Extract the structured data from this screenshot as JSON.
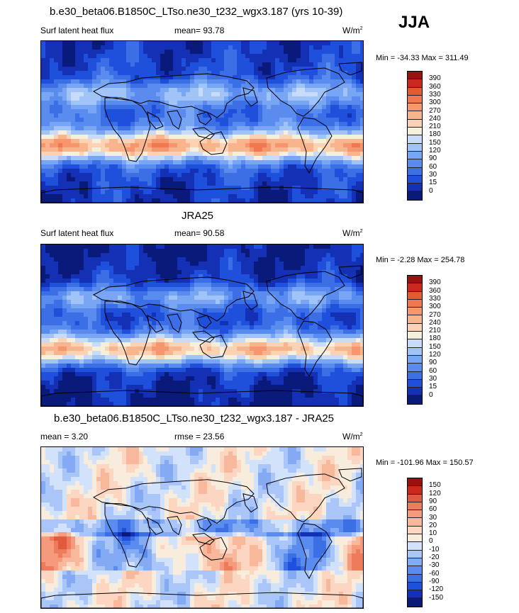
{
  "season": "JJA",
  "colors": {
    "abs_scale": [
      "#0a1a7a",
      "#1430b4",
      "#1e50dc",
      "#3c6ee6",
      "#5a8cf0",
      "#78a6f4",
      "#a0c3f8",
      "#c8dcfa",
      "#f5f0dc",
      "#fcd2b4",
      "#f8b48c",
      "#f5966e",
      "#f07850",
      "#e65a32",
      "#c8281e",
      "#9b0f0f"
    ],
    "diff_scale": [
      "#0a1a7a",
      "#1430b4",
      "#1e50dc",
      "#3c6ee6",
      "#5a8cf0",
      "#84aaf4",
      "#aac6f8",
      "#d2e2fa",
      "#f8ecdc",
      "#fcd6c0",
      "#f8b89c",
      "#f59a7c",
      "#ee7c5c",
      "#e05a3c",
      "#c8281e",
      "#9b0f0f"
    ],
    "land_outline": "#000000"
  },
  "panels": [
    {
      "title": "b.e30_beta06.B1850C_LTso.ne30_t232_wgx3.187 (yrs 10-39)",
      "left_label": "Surf latent heat flux",
      "center_label": "mean=  93.78",
      "units": "W/m",
      "units_sup": "2",
      "minmax": "Min = -34.33 Max = 311.49"
    },
    {
      "title": "JRA25",
      "left_label": "Surf latent heat flux",
      "center_label": "mean=  90.58",
      "units": "W/m",
      "units_sup": "2",
      "minmax": "Min =  -2.28 Max = 254.78"
    },
    {
      "title": "b.e30_beta06.B1850C_LTso.ne30_t232_wgx3.187 - JRA25",
      "left_label": "mean =   3.20",
      "center_label": "rmse =  23.56",
      "units": "W/m",
      "units_sup": "2",
      "minmax": "Min = -101.96 Max = 150.57"
    }
  ],
  "chart_data": [
    {
      "type": "heatmap",
      "title": "b.e30_beta06.B1850C_LTso.ne30_t232_wgx3.187 (yrs 10-39)",
      "variable": "Surf latent heat flux",
      "units": "W/m2",
      "mean": 93.78,
      "min": -34.33,
      "max": 311.49,
      "colorbar_levels": [
        0,
        15,
        30,
        60,
        90,
        120,
        150,
        180,
        210,
        240,
        270,
        300,
        330,
        360,
        390
      ]
    },
    {
      "type": "heatmap",
      "title": "JRA25",
      "variable": "Surf latent heat flux",
      "units": "W/m2",
      "mean": 90.58,
      "min": -2.28,
      "max": 254.78,
      "colorbar_levels": [
        0,
        15,
        30,
        60,
        90,
        120,
        150,
        180,
        210,
        240,
        270,
        300,
        330,
        360,
        390
      ]
    },
    {
      "type": "heatmap",
      "title": "b.e30_beta06.B1850C_LTso.ne30_t232_wgx3.187 - JRA25",
      "units": "W/m2",
      "mean": 3.2,
      "rmse": 23.56,
      "min": -101.96,
      "max": 150.57,
      "colorbar_levels": [
        -150,
        -120,
        -90,
        -60,
        -30,
        -20,
        -10,
        0,
        10,
        20,
        30,
        60,
        90,
        120,
        150
      ]
    }
  ]
}
